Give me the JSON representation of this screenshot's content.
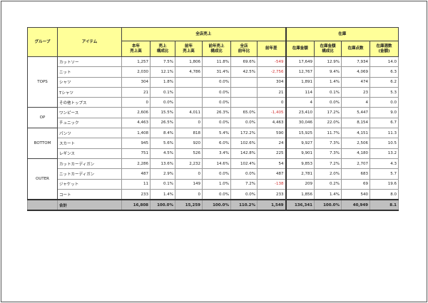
{
  "header": {
    "group": "グループ",
    "item": "アイテム",
    "sales_group": "全店売上",
    "stock_group": "在庫",
    "cols": [
      "本年\n売上高",
      "売上\n構成比",
      "前年\n売上高",
      "前年売上\n構成比",
      "全店\n前年比",
      "前年差",
      "在庫金額",
      "在庫金額\n構成比",
      "在庫点数",
      "在庫週数\n(金額)"
    ]
  },
  "groups": [
    {
      "name": "TOPS",
      "rows": [
        {
          "item": "カットソー",
          "v": [
            "1,257",
            "7.5%",
            "1,806",
            "11.8%",
            "69.6%",
            "-549",
            "17,649",
            "12.9%",
            "7,934",
            "14.0"
          ],
          "neg": true
        },
        {
          "item": "ニット",
          "v": [
            "2,030",
            "12.1%",
            "4,786",
            "31.4%",
            "42.5%",
            "-2,756",
            "12,767",
            "9.4%",
            "4,069",
            "6.3"
          ],
          "neg": true
        },
        {
          "item": "シャツ",
          "v": [
            "304",
            "1.8%",
            "",
            "0.0%",
            "",
            "304",
            "1,891",
            "1.4%",
            "474",
            "6.2"
          ]
        },
        {
          "item": "Tシャツ",
          "v": [
            "21",
            "0.1%",
            "",
            "0.0%",
            "",
            "21",
            "114",
            "0.1%",
            "23",
            "5.3"
          ]
        },
        {
          "item": "その他トップス",
          "v": [
            "0",
            "0.0%",
            "",
            "0.0%",
            "",
            "0",
            "4",
            "0.0%",
            "4",
            "0.0"
          ]
        }
      ]
    },
    {
      "name": "OP",
      "rows": [
        {
          "item": "ワンピース",
          "v": [
            "2,606",
            "15.5%",
            "4,011",
            "26.3%",
            "65.0%",
            "-1,405",
            "23,410",
            "17.2%",
            "5,447",
            "9.0"
          ],
          "neg": true
        },
        {
          "item": "チュニック",
          "v": [
            "4,463",
            "26.5%",
            "0",
            "0.0%",
            "0.0%",
            "4,463",
            "30,046",
            "22.0%",
            "8,154",
            "6.7"
          ]
        }
      ]
    },
    {
      "name": "BOTTOM",
      "rows": [
        {
          "item": "パンツ",
          "v": [
            "1,408",
            "8.4%",
            "818",
            "5.4%",
            "172.2%",
            "590",
            "15,925",
            "11.7%",
            "4,151",
            "11.3"
          ]
        },
        {
          "item": "スカート",
          "v": [
            "945",
            "5.6%",
            "920",
            "6.0%",
            "102.6%",
            "24",
            "9,927",
            "7.3%",
            "2,506",
            "10.5"
          ]
        },
        {
          "item": "レギンス",
          "v": [
            "751",
            "4.5%",
            "526",
            "3.4%",
            "142.8%",
            "225",
            "9,901",
            "7.3%",
            "4,180",
            "13.2"
          ]
        }
      ]
    },
    {
      "name": "OUTER",
      "rows": [
        {
          "item": "カットカーディガン",
          "v": [
            "2,286",
            "13.6%",
            "2,232",
            "14.6%",
            "102.4%",
            "54",
            "9,853",
            "7.2%",
            "2,707",
            "4.3"
          ]
        },
        {
          "item": "ニットカーディガン",
          "v": [
            "487",
            "2.9%",
            "0",
            "0.0%",
            "0.0%",
            "487",
            "2,781",
            "2.0%",
            "683",
            "5.7"
          ]
        },
        {
          "item": "ジャケット",
          "v": [
            "11",
            "0.1%",
            "149",
            "1.0%",
            "7.2%",
            "-138",
            "209",
            "0.2%",
            "69",
            "19.6"
          ],
          "neg": true
        },
        {
          "item": "コート",
          "v": [
            "233",
            "1.4%",
            "0",
            "0.0%",
            "0.0%",
            "233",
            "1,856",
            "1.4%",
            "540",
            "8.0"
          ]
        }
      ]
    }
  ],
  "total": {
    "label": "合計",
    "v": [
      "16,808",
      "100.0%",
      "15,259",
      "100.0%",
      "110.2%",
      "1,549",
      "136,341",
      "100.0%",
      "40,949",
      "8.1"
    ]
  },
  "colors": {
    "header_bg": "#ffff99",
    "total_bg": "#c0c0c0",
    "negative": "#d03030"
  }
}
